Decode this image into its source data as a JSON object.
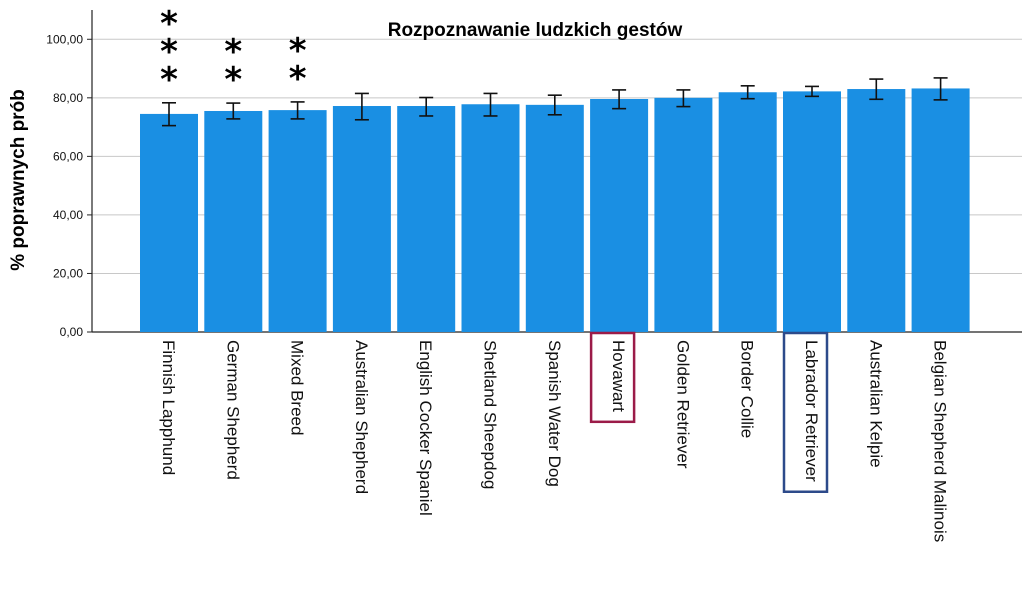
{
  "chart_data": {
    "type": "bar",
    "title": "Rozpoznawanie ludzkich gestów",
    "xlabel": "",
    "ylabel": "% poprawnych prób",
    "ylim": [
      0,
      110
    ],
    "yticks": [
      "0,00",
      "20,00",
      "40,00",
      "60,00",
      "80,00",
      "100,00"
    ],
    "ytick_values": [
      0,
      20,
      40,
      60,
      80,
      100
    ],
    "grid": true,
    "bar_color": "#1a8fe3",
    "categories": [
      "Finnish Lapphund",
      "German Shepherd",
      "Mixed Breed",
      "Australian Shepherd",
      "English Cocker Spaniel",
      "Shetland Sheepdog",
      "Spanish Water Dog",
      "Hovawart",
      "Golden Retriever",
      "Border Collie",
      "Labrador Retriever",
      "Australian Kelpie",
      "Belgian Shepherd Malinois"
    ],
    "values": [
      74.5,
      75.5,
      75.8,
      77.2,
      77.2,
      77.8,
      77.6,
      79.6,
      80.0,
      81.9,
      82.2,
      83.0,
      83.2
    ],
    "error_low": [
      70.5,
      72.8,
      72.8,
      72.5,
      73.8,
      73.8,
      74.2,
      76.3,
      77.0,
      79.7,
      80.5,
      79.5,
      79.3
    ],
    "error_high": [
      78.3,
      78.2,
      78.6,
      81.5,
      80.1,
      81.5,
      80.9,
      82.7,
      82.7,
      84.1,
      83.9,
      86.4,
      86.8
    ],
    "significance": [
      "***",
      "**",
      "**",
      "",
      "",
      "",
      "",
      "",
      "",
      "",
      "",
      "",
      ""
    ],
    "highlighted": [
      {
        "category": "Hovawart",
        "color": "#9b1b48"
      },
      {
        "category": "Labrador Retriever",
        "color": "#2d4a8a"
      }
    ]
  }
}
